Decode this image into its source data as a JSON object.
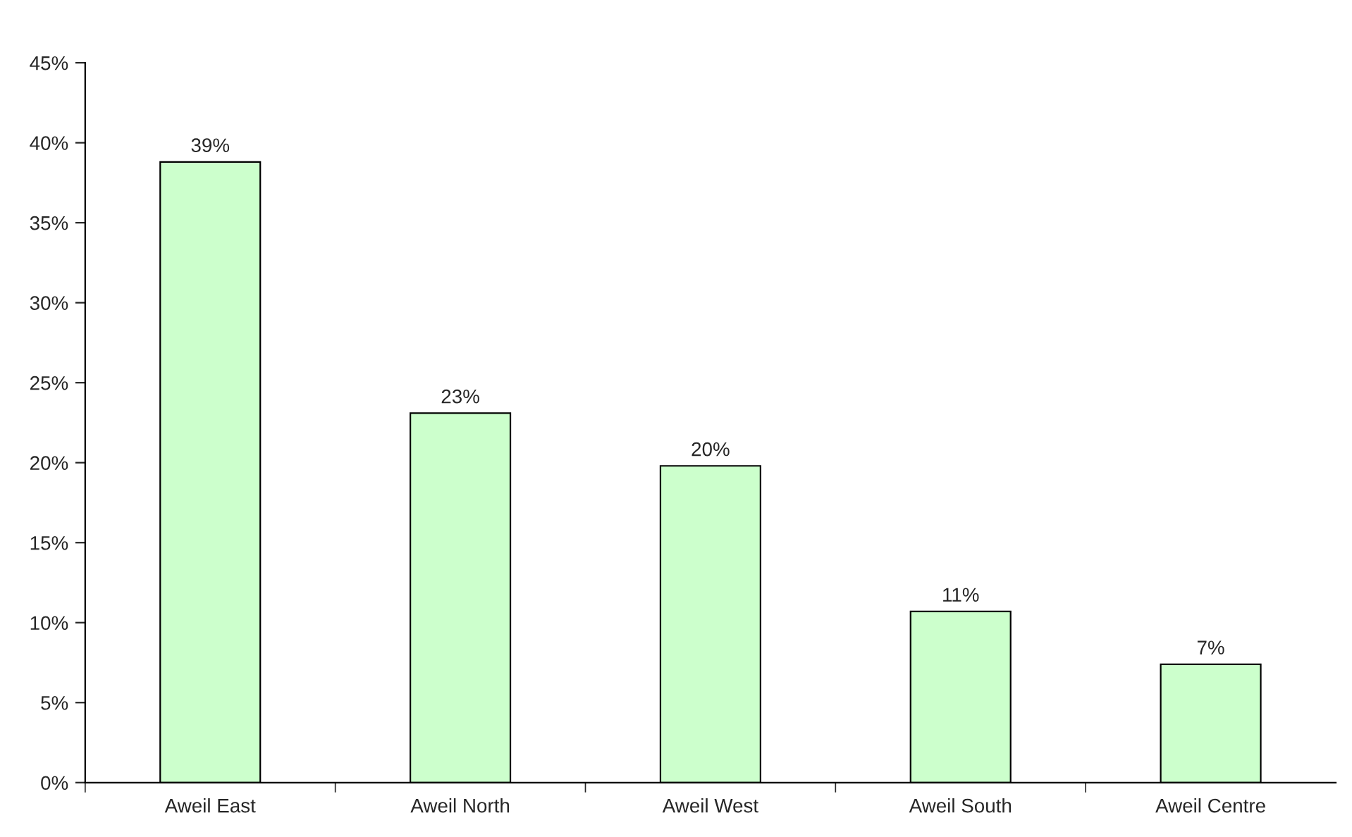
{
  "chart_data": {
    "type": "bar",
    "categories": [
      "Aweil East",
      "Aweil North",
      "Aweil West",
      "Aweil South",
      "Aweil Centre"
    ],
    "values": [
      38.8,
      23.1,
      19.8,
      10.7,
      7.4
    ],
    "value_labels": [
      "39%",
      "23%",
      "20%",
      "11%",
      "7%"
    ],
    "color": "#ccffcc",
    "ylim": [
      0,
      45
    ],
    "yticks": [
      {
        "value": 0,
        "label": "0%"
      },
      {
        "value": 5,
        "label": "5%"
      },
      {
        "value": 10,
        "label": "10%"
      },
      {
        "value": 15,
        "label": "15%"
      },
      {
        "value": 20,
        "label": "20%"
      },
      {
        "value": 25,
        "label": "25%"
      },
      {
        "value": 30,
        "label": "30%"
      },
      {
        "value": 35,
        "label": "35%"
      },
      {
        "value": 40,
        "label": "40%"
      },
      {
        "value": 45,
        "label": "45%"
      }
    ],
    "grid": false
  }
}
